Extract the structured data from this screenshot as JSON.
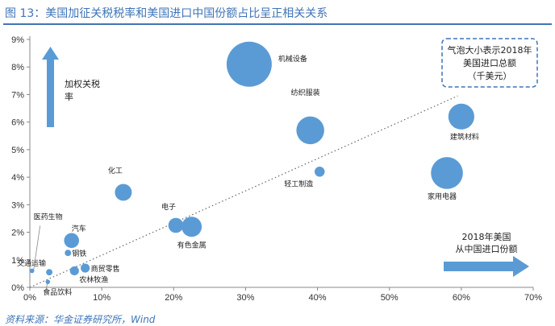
{
  "figure": {
    "title": "图 13：美国加征关税税率和美国进口中国份额占比呈正相关关系",
    "source": "资料来源：华金证券研究所，Wind"
  },
  "chart_data": {
    "type": "scatter",
    "subtype": "bubble",
    "title": "",
    "xlabel": "",
    "ylabel": "",
    "xlim": [
      0,
      70
    ],
    "ylim": [
      0,
      9
    ],
    "x_ticks": [
      "0%",
      "10%",
      "20%",
      "30%",
      "40%",
      "50%",
      "60%",
      "70%"
    ],
    "y_ticks": [
      "0%",
      "1%",
      "2%",
      "3%",
      "4%",
      "5%",
      "6%",
      "7%",
      "8%",
      "9%"
    ],
    "grid": false,
    "trendline": "linear dotted",
    "bubble_color": "#5b9bd5",
    "series": [
      {
        "label": "机械设备",
        "x": 30.5,
        "y": 8.1,
        "size": 100
      },
      {
        "label": "纺织服装",
        "x": 39,
        "y": 5.7,
        "size": 38
      },
      {
        "label": "建筑材料",
        "x": 60,
        "y": 6.2,
        "size": 33
      },
      {
        "label": "家用电器",
        "x": 58,
        "y": 4.15,
        "size": 50
      },
      {
        "label": "轻工制造",
        "x": 40.3,
        "y": 4.2,
        "size": 5
      },
      {
        "label": "化工",
        "x": 13,
        "y": 3.45,
        "size": 14
      },
      {
        "label": "电子",
        "x": 20.3,
        "y": 2.25,
        "size": 11
      },
      {
        "label": "有色金属",
        "x": 22.5,
        "y": 2.2,
        "size": 20
      },
      {
        "label": "汽车",
        "x": 5.8,
        "y": 1.7,
        "size": 11
      },
      {
        "label": "钢铁",
        "x": 5.3,
        "y": 1.25,
        "size": 2
      },
      {
        "label": "商贸零售",
        "x": 7.7,
        "y": 0.7,
        "size": 4
      },
      {
        "label": "农林牧渔",
        "x": 6.2,
        "y": 0.6,
        "size": 4
      },
      {
        "label": "交通运输",
        "x": 2.7,
        "y": 0.55,
        "size": 2
      },
      {
        "label": "食品饮料",
        "x": 2.5,
        "y": 0.2,
        "size": 1
      },
      {
        "label": "医药生物",
        "x": 0.3,
        "y": 0.6,
        "size": 1
      }
    ],
    "annotations": {
      "y_arrow_label": "加权关税率",
      "x_arrow_label": "2018年美国从中国进口份额",
      "legend_box": "气泡大小表示2018年美国进口总额（千美元）"
    }
  }
}
